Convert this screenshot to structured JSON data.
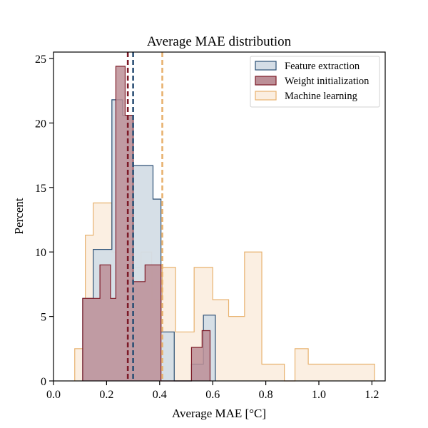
{
  "chart_data": {
    "type": "histogram",
    "title": "Average MAE distribution",
    "xlabel": "Average MAE [°C]",
    "ylabel": "Percent",
    "xlim": [
      0.0,
      1.25
    ],
    "ylim": [
      0,
      25.5
    ],
    "xticks": [
      0.0,
      0.2,
      0.4,
      0.6,
      0.8,
      1.0,
      1.2
    ],
    "xtick_labels": [
      "0.0",
      "0.2",
      "0.4",
      "0.6",
      "0.8",
      "1.0",
      "1.2"
    ],
    "yticks": [
      0,
      5,
      10,
      15,
      20,
      25
    ],
    "ytick_labels": [
      "0",
      "5",
      "10",
      "15",
      "20",
      "25"
    ],
    "grid": false,
    "legend_position": "top-right",
    "series": [
      {
        "name": "Feature extraction",
        "fill": "#d4dde6",
        "stroke": "#2b4f74",
        "mean_line": 0.3,
        "bins": [
          [
            0.11,
            0.13,
            6.4
          ],
          [
            0.13,
            0.15,
            6.4
          ],
          [
            0.15,
            0.175,
            10.2
          ],
          [
            0.175,
            0.22,
            10.2
          ],
          [
            0.22,
            0.26,
            21.8
          ],
          [
            0.26,
            0.3,
            20.6
          ],
          [
            0.3,
            0.35,
            16.7
          ],
          [
            0.35,
            0.375,
            16.7
          ],
          [
            0.375,
            0.405,
            14.1
          ],
          [
            0.405,
            0.455,
            3.8
          ],
          [
            0.455,
            0.52,
            0.0
          ],
          [
            0.52,
            0.565,
            1.3
          ],
          [
            0.565,
            0.61,
            5.1
          ]
        ]
      },
      {
        "name": "Weight initialization",
        "fill": "#bc8f97",
        "stroke": "#7d1a27",
        "mean_line": 0.28,
        "bins": [
          [
            0.11,
            0.145,
            6.4
          ],
          [
            0.145,
            0.175,
            6.4
          ],
          [
            0.175,
            0.215,
            9.0
          ],
          [
            0.215,
            0.235,
            6.4
          ],
          [
            0.235,
            0.27,
            24.4
          ],
          [
            0.27,
            0.3,
            20.6
          ],
          [
            0.3,
            0.345,
            7.7
          ],
          [
            0.345,
            0.365,
            9.0
          ],
          [
            0.365,
            0.405,
            9.0
          ],
          [
            0.405,
            0.52,
            0.0
          ],
          [
            0.52,
            0.56,
            2.6
          ],
          [
            0.56,
            0.59,
            3.9
          ]
        ]
      },
      {
        "name": "Machine learning",
        "fill": "#fbeee0",
        "stroke": "#e8b26f",
        "mean_line": 0.41,
        "bins": [
          [
            0.08,
            0.1,
            2.5
          ],
          [
            0.1,
            0.12,
            2.5
          ],
          [
            0.12,
            0.15,
            11.3
          ],
          [
            0.15,
            0.22,
            13.8
          ],
          [
            0.22,
            0.25,
            10.0
          ],
          [
            0.25,
            0.33,
            8.8
          ],
          [
            0.33,
            0.37,
            10.0
          ],
          [
            0.37,
            0.4,
            6.3
          ],
          [
            0.4,
            0.41,
            6.3
          ],
          [
            0.41,
            0.46,
            8.8
          ],
          [
            0.46,
            0.49,
            3.8
          ],
          [
            0.49,
            0.53,
            3.8
          ],
          [
            0.53,
            0.6,
            8.8
          ],
          [
            0.6,
            0.66,
            6.3
          ],
          [
            0.66,
            0.72,
            5.0
          ],
          [
            0.72,
            0.785,
            10.0
          ],
          [
            0.785,
            0.87,
            1.3
          ],
          [
            0.87,
            0.91,
            0.0
          ],
          [
            0.91,
            0.96,
            2.5
          ],
          [
            0.96,
            1.08,
            1.3
          ],
          [
            1.08,
            1.21,
            1.3
          ]
        ]
      }
    ]
  }
}
